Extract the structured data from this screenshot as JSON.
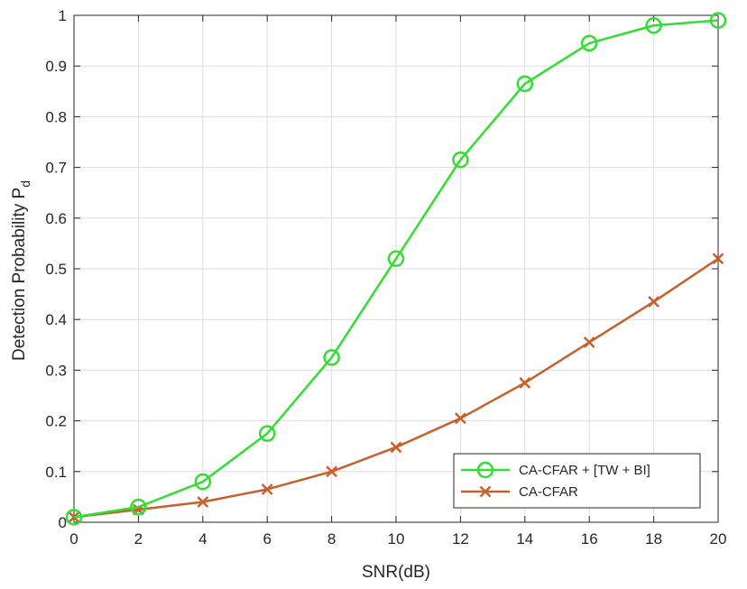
{
  "chart_data": {
    "type": "line",
    "title": "",
    "xlabel": "SNR(dB)",
    "ylabel": "Detection Probability P",
    "ylabel_subscript": "d",
    "xlim": [
      0,
      20
    ],
    "ylim": [
      0,
      1
    ],
    "xticks": [
      0,
      2,
      4,
      6,
      8,
      10,
      12,
      14,
      16,
      18,
      20
    ],
    "yticks": [
      0,
      0.1,
      0.2,
      0.3,
      0.4,
      0.5,
      0.6,
      0.7,
      0.8,
      0.9,
      1
    ],
    "xtick_labels": [
      "0",
      "2",
      "4",
      "6",
      "8",
      "10",
      "12",
      "14",
      "16",
      "18",
      "20"
    ],
    "ytick_labels": [
      "0",
      "0.1",
      "0.2",
      "0.3",
      "0.4",
      "0.5",
      "0.6",
      "0.7",
      "0.8",
      "0.9",
      "1"
    ],
    "grid": true,
    "legend_position": "bottom-right",
    "series": [
      {
        "name": "CA-CFAR + [TW + BI]",
        "marker": "circle",
        "color": "#33dd33",
        "x": [
          0,
          2,
          4,
          6,
          8,
          10,
          12,
          14,
          16,
          18,
          20
        ],
        "y": [
          0.01,
          0.03,
          0.08,
          0.175,
          0.325,
          0.52,
          0.715,
          0.865,
          0.945,
          0.98,
          0.99
        ]
      },
      {
        "name": "CA-CFAR",
        "marker": "x",
        "color": "#c8602b",
        "x": [
          0,
          2,
          4,
          6,
          8,
          10,
          12,
          14,
          16,
          18,
          20
        ],
        "y": [
          0.01,
          0.025,
          0.04,
          0.065,
          0.1,
          0.148,
          0.205,
          0.275,
          0.355,
          0.435,
          0.52
        ]
      }
    ]
  }
}
